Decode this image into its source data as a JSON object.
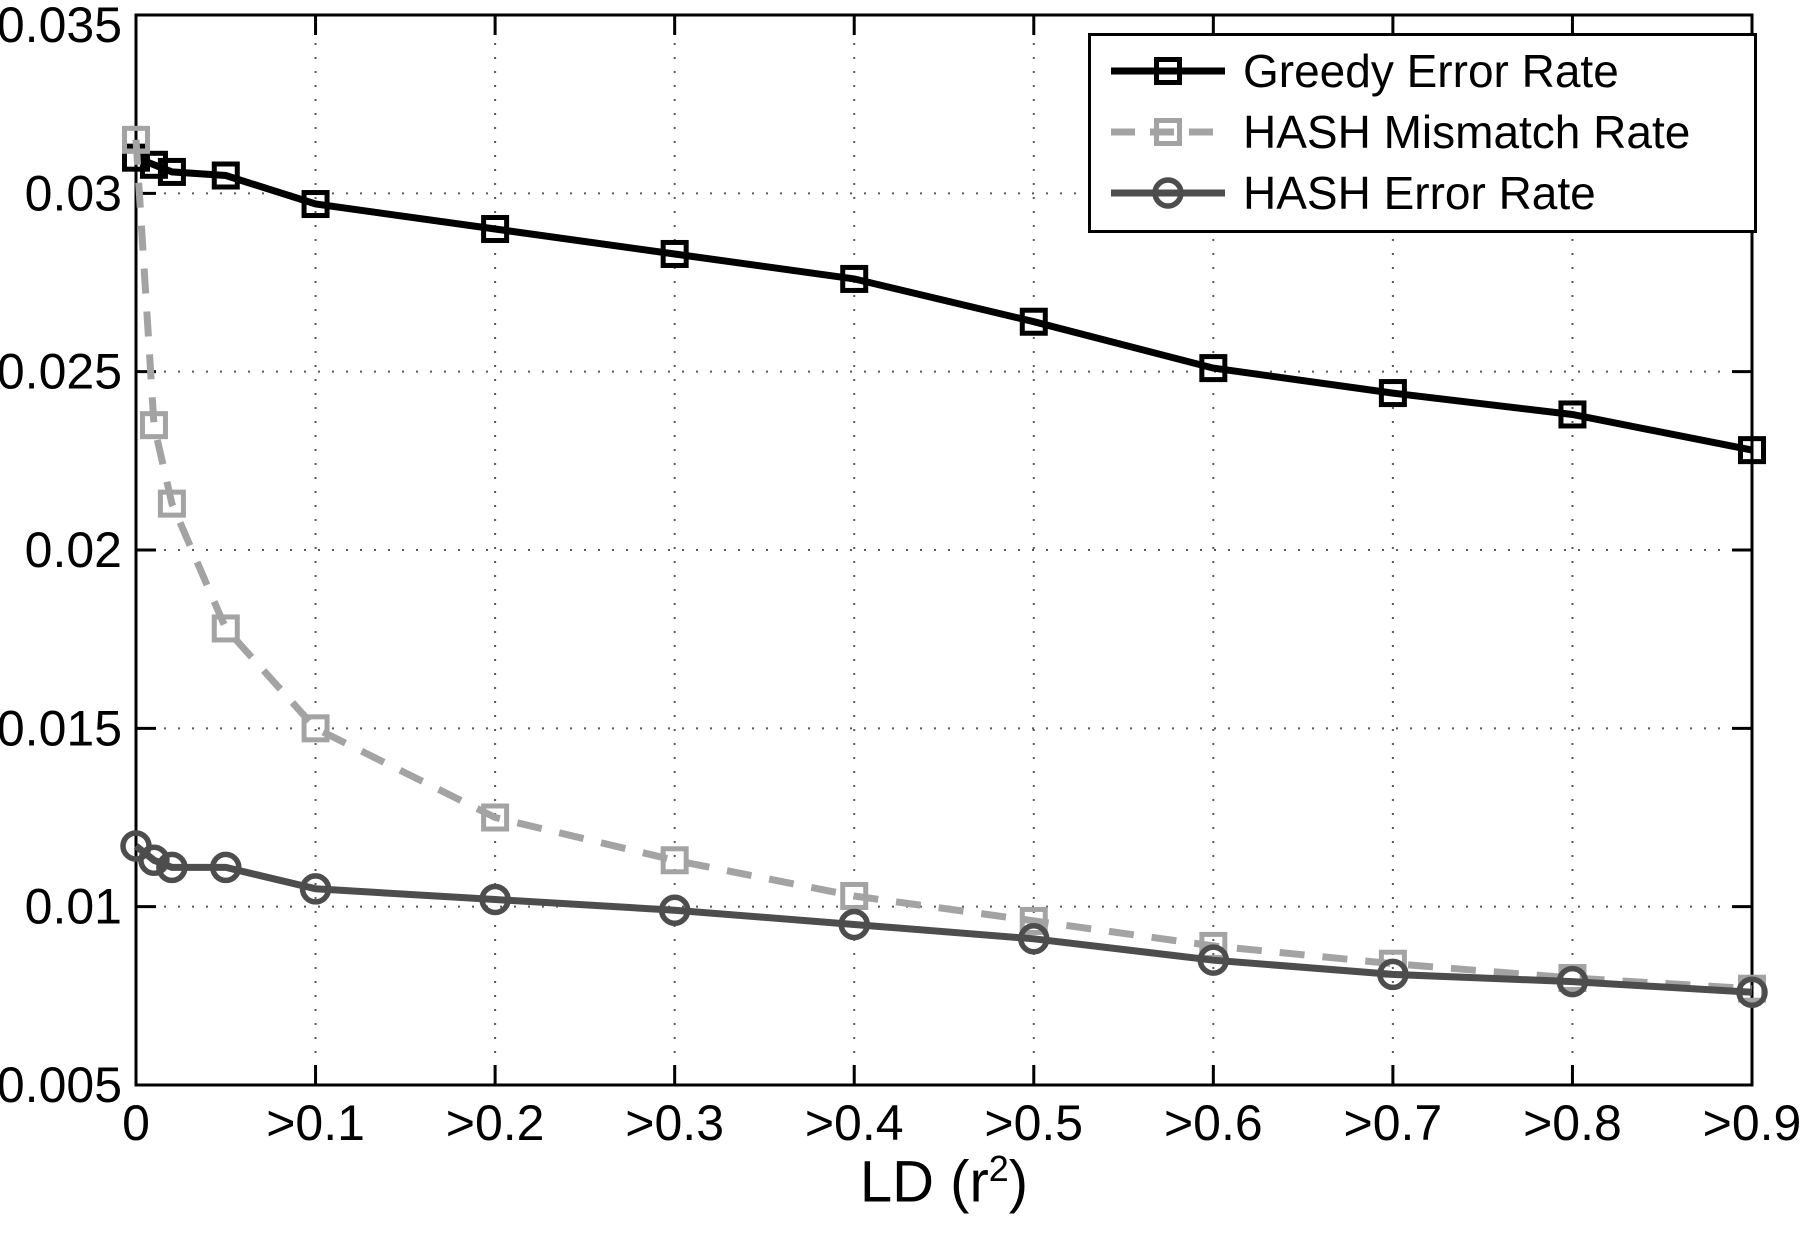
{
  "figure": {
    "background": "#ffffff"
  },
  "chart_data": {
    "type": "line",
    "title": "",
    "xlabel": {
      "text": "LD (r",
      "sup": "2",
      "close": ")"
    },
    "ylabel": "",
    "xlim": [
      0,
      0.9
    ],
    "ylim": [
      0.005,
      0.035
    ],
    "grid": "dotted",
    "legend_position": "top-right",
    "x_tick_values": [
      0,
      0.1,
      0.2,
      0.3,
      0.4,
      0.5,
      0.6,
      0.7,
      0.8,
      0.9
    ],
    "x_tick_labels": [
      "0",
      ">0.1",
      ">0.2",
      ">0.3",
      ">0.4",
      ">0.5",
      ">0.6",
      ">0.7",
      ">0.8",
      ">0.9"
    ],
    "y_tick_values": [
      0.005,
      0.01,
      0.015,
      0.02,
      0.025,
      0.03,
      0.035
    ],
    "y_tick_labels": [
      "0.005",
      "0.01",
      "0.015",
      "0.02",
      "0.025",
      "0.03",
      "0.035"
    ],
    "x": [
      0,
      0.01,
      0.02,
      0.05,
      0.1,
      0.2,
      0.3,
      0.4,
      0.5,
      0.6,
      0.7,
      0.8,
      0.9
    ],
    "series": [
      {
        "name": "Greedy Error Rate",
        "color": "#000000",
        "line": "solid",
        "marker": "square",
        "values": [
          0.031,
          0.0308,
          0.0306,
          0.0305,
          0.0297,
          0.029,
          0.0283,
          0.0276,
          0.0264,
          0.0251,
          0.0244,
          0.0238,
          0.0228
        ]
      },
      {
        "name": "HASH Mismatch Rate",
        "color": "#a3a3a3",
        "line": "dashed",
        "marker": "square",
        "values": [
          0.0315,
          0.0235,
          0.0213,
          0.0178,
          0.015,
          0.0125,
          0.0113,
          0.0103,
          0.0096,
          0.0089,
          0.0084,
          0.008,
          0.0077
        ]
      },
      {
        "name": "HASH Error Rate",
        "color": "#4d4d4d",
        "line": "solid",
        "marker": "circle",
        "values": [
          0.0117,
          0.0113,
          0.0111,
          0.0111,
          0.0105,
          0.0102,
          0.0099,
          0.0095,
          0.0091,
          0.0085,
          0.0081,
          0.0079,
          0.0076
        ]
      }
    ]
  }
}
